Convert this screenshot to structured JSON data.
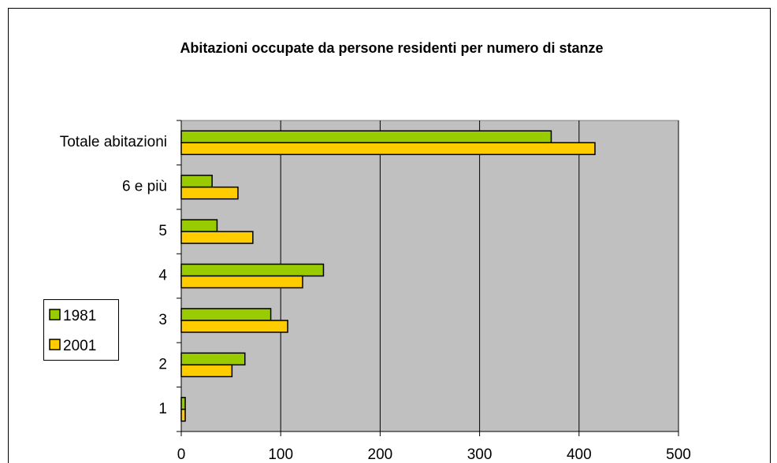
{
  "chart_data": {
    "type": "hbar",
    "title": "Abitazioni occupate da persone residenti per numero di stanze",
    "categories": [
      "1",
      "2",
      "3",
      "4",
      "5",
      "6 e più",
      "Totale abitazioni"
    ],
    "series": [
      {
        "name": "1981",
        "color": "#99cc00",
        "values": [
          4,
          64,
          90,
          143,
          36,
          31,
          372
        ]
      },
      {
        "name": "2001",
        "color": "#ffcc00",
        "values": [
          4,
          51,
          107,
          122,
          72,
          57,
          416
        ]
      }
    ],
    "xlim": [
      0,
      500
    ],
    "xticks": [
      0,
      100,
      200,
      300,
      400,
      500
    ],
    "grid": true,
    "legend": "left"
  }
}
